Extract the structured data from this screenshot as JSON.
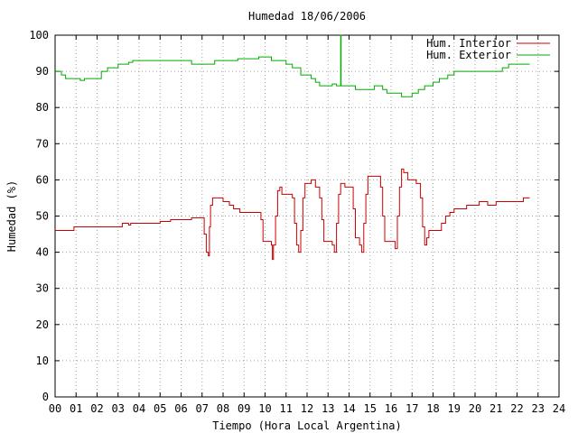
{
  "chart_data": {
    "type": "line",
    "title": "Humedad 18/06/2006",
    "xlabel": "Tiempo (Hora Local Argentina)",
    "ylabel": "Humedad (%)",
    "xlim": [
      0,
      24
    ],
    "ylim": [
      0,
      100
    ],
    "grid": true,
    "legend_position": "top-right",
    "x_ticks": [
      "00",
      "01",
      "02",
      "03",
      "04",
      "05",
      "06",
      "07",
      "08",
      "09",
      "10",
      "11",
      "12",
      "13",
      "14",
      "15",
      "16",
      "17",
      "18",
      "19",
      "20",
      "21",
      "22",
      "23",
      "24"
    ],
    "y_ticks": [
      "0",
      "10",
      "20",
      "30",
      "40",
      "50",
      "60",
      "70",
      "80",
      "90",
      "100"
    ],
    "series": [
      {
        "name": "Hum. Interior",
        "color": "#cc0000",
        "points": [
          [
            0,
            46
          ],
          [
            0.8,
            46
          ],
          [
            0.9,
            47
          ],
          [
            1.5,
            47
          ],
          [
            2,
            47
          ],
          [
            3,
            47
          ],
          [
            3.2,
            48
          ],
          [
            3.4,
            48
          ],
          [
            3.5,
            47.5
          ],
          [
            3.6,
            48
          ],
          [
            4,
            48
          ],
          [
            4.5,
            48
          ],
          [
            4.7,
            48
          ],
          [
            5,
            48.5
          ],
          [
            5.5,
            49
          ],
          [
            6,
            49
          ],
          [
            6.5,
            49.5
          ],
          [
            7.0,
            49.5
          ],
          [
            7.1,
            45
          ],
          [
            7.2,
            40
          ],
          [
            7.3,
            39
          ],
          [
            7.35,
            47
          ],
          [
            7.4,
            53
          ],
          [
            7.5,
            55
          ],
          [
            7.8,
            55
          ],
          [
            8.0,
            54
          ],
          [
            8.3,
            53
          ],
          [
            8.5,
            52
          ],
          [
            8.8,
            51
          ],
          [
            9.2,
            51
          ],
          [
            9.6,
            51
          ],
          [
            9.8,
            49
          ],
          [
            9.9,
            43
          ],
          [
            10.3,
            42
          ],
          [
            10.35,
            38
          ],
          [
            10.4,
            42
          ],
          [
            10.5,
            50
          ],
          [
            10.6,
            57
          ],
          [
            10.7,
            58
          ],
          [
            10.8,
            56
          ],
          [
            11.2,
            56
          ],
          [
            11.3,
            55
          ],
          [
            11.4,
            48
          ],
          [
            11.5,
            42
          ],
          [
            11.6,
            40
          ],
          [
            11.7,
            46
          ],
          [
            11.8,
            55
          ],
          [
            11.9,
            59
          ],
          [
            12.2,
            60
          ],
          [
            12.4,
            58
          ],
          [
            12.6,
            55
          ],
          [
            12.7,
            49
          ],
          [
            12.8,
            43
          ],
          [
            13.2,
            42
          ],
          [
            13.3,
            40
          ],
          [
            13.4,
            48
          ],
          [
            13.5,
            56
          ],
          [
            13.6,
            59
          ],
          [
            13.8,
            58
          ],
          [
            14.1,
            58
          ],
          [
            14.2,
            52
          ],
          [
            14.3,
            44
          ],
          [
            14.5,
            42
          ],
          [
            14.6,
            40
          ],
          [
            14.7,
            48
          ],
          [
            14.8,
            56
          ],
          [
            14.9,
            61
          ],
          [
            15.3,
            61
          ],
          [
            15.5,
            58
          ],
          [
            15.6,
            50
          ],
          [
            15.7,
            43
          ],
          [
            16.1,
            43
          ],
          [
            16.2,
            41
          ],
          [
            16.3,
            50
          ],
          [
            16.4,
            58
          ],
          [
            16.5,
            63
          ],
          [
            16.6,
            62
          ],
          [
            16.8,
            60
          ],
          [
            17.2,
            59
          ],
          [
            17.4,
            55
          ],
          [
            17.5,
            47
          ],
          [
            17.6,
            42
          ],
          [
            17.7,
            44
          ],
          [
            17.8,
            46
          ],
          [
            18.2,
            46
          ],
          [
            18.4,
            48
          ],
          [
            18.6,
            50
          ],
          [
            18.8,
            51
          ],
          [
            19.0,
            52
          ],
          [
            19.4,
            52
          ],
          [
            19.6,
            53
          ],
          [
            19.8,
            53
          ],
          [
            20.0,
            53
          ],
          [
            20.2,
            54
          ],
          [
            20.6,
            53
          ],
          [
            21.0,
            54
          ],
          [
            21.5,
            54
          ],
          [
            22.0,
            54
          ],
          [
            22.3,
            55
          ],
          [
            22.6,
            55
          ]
        ]
      },
      {
        "name": "Hum. Exterior",
        "color": "#00aa00",
        "points": [
          [
            0,
            90
          ],
          [
            0.3,
            89
          ],
          [
            0.5,
            88
          ],
          [
            1.0,
            88
          ],
          [
            1.2,
            87.5
          ],
          [
            1.4,
            88
          ],
          [
            2.0,
            88
          ],
          [
            2.2,
            90
          ],
          [
            2.5,
            91
          ],
          [
            3.0,
            92
          ],
          [
            3.5,
            92.5
          ],
          [
            3.7,
            93
          ],
          [
            6.0,
            93
          ],
          [
            6.5,
            92
          ],
          [
            7.5,
            92
          ],
          [
            7.6,
            93
          ],
          [
            8.5,
            93
          ],
          [
            8.7,
            93.5
          ],
          [
            9.5,
            93.5
          ],
          [
            9.7,
            94
          ],
          [
            10.3,
            93
          ],
          [
            11.0,
            92
          ],
          [
            11.3,
            91
          ],
          [
            11.7,
            89
          ],
          [
            12.2,
            88
          ],
          [
            12.4,
            87
          ],
          [
            12.6,
            86
          ],
          [
            13.0,
            86
          ],
          [
            13.2,
            86.5
          ],
          [
            13.4,
            86
          ],
          [
            13.6,
            100
          ],
          [
            13.62,
            86
          ],
          [
            14.0,
            86
          ],
          [
            14.3,
            85
          ],
          [
            14.6,
            85
          ],
          [
            15.0,
            85
          ],
          [
            15.2,
            86
          ],
          [
            15.6,
            85
          ],
          [
            15.8,
            84
          ],
          [
            16.2,
            84
          ],
          [
            16.5,
            83
          ],
          [
            17.0,
            84
          ],
          [
            17.3,
            85
          ],
          [
            17.6,
            86
          ],
          [
            18.0,
            87
          ],
          [
            18.3,
            88
          ],
          [
            18.7,
            89
          ],
          [
            19.0,
            90
          ],
          [
            20.0,
            90
          ],
          [
            21.0,
            90
          ],
          [
            21.3,
            91
          ],
          [
            21.6,
            92
          ],
          [
            22.0,
            92
          ],
          [
            22.6,
            92
          ]
        ]
      }
    ]
  }
}
